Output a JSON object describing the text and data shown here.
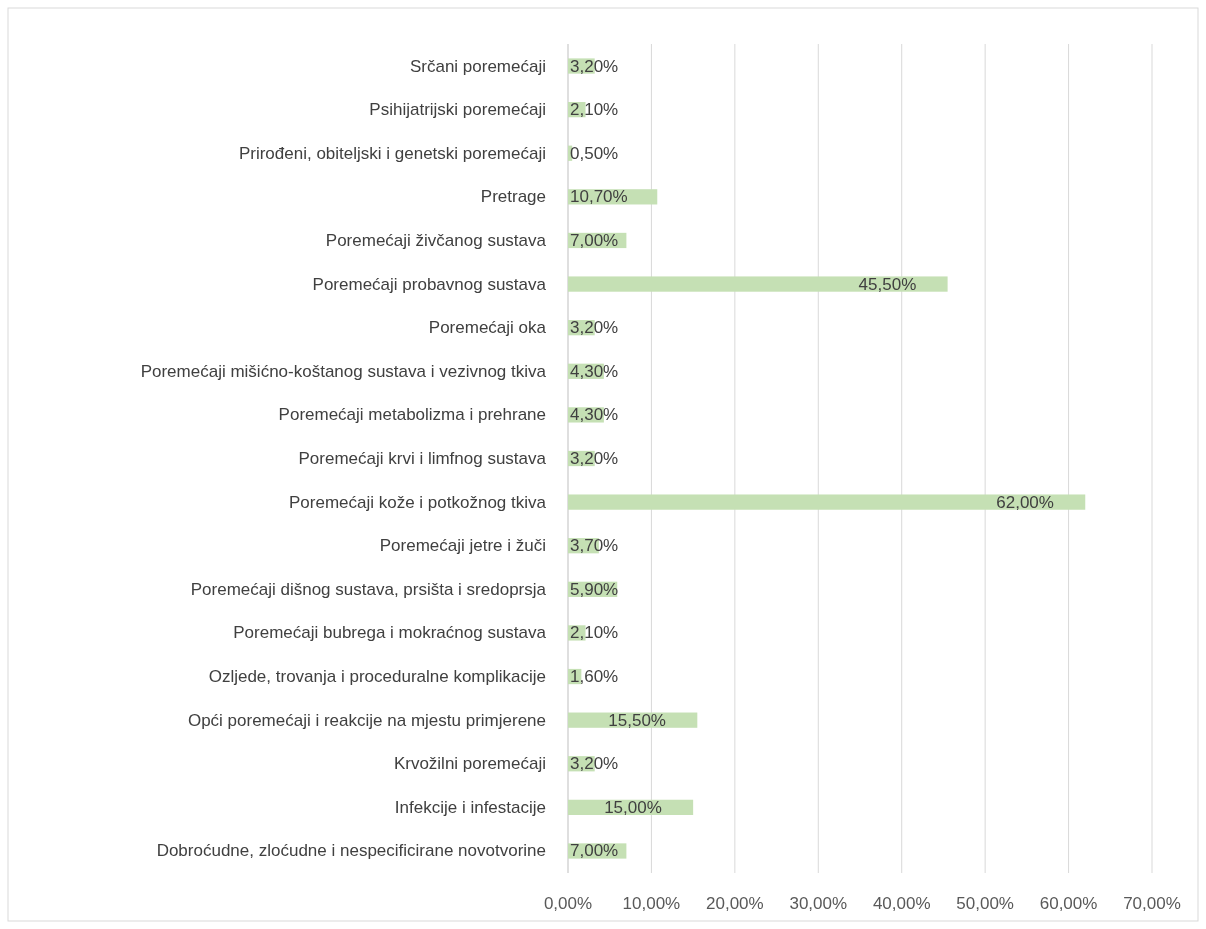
{
  "chart_data": {
    "type": "bar",
    "orientation": "horizontal",
    "categories": [
      "Srčani poremećaji",
      "Psihijatrijski poremećaji",
      "Prirođeni, obiteljski i genetski poremećaji",
      "Pretrage",
      "Poremećaji živčanog sustava",
      "Poremećaji probavnog sustava",
      "Poremećaji oka",
      "Poremećaji mišićno-koštanog sustava i vezivnog tkiva",
      "Poremećaji metabolizma i prehrane",
      "Poremećaji krvi i limfnog sustava",
      "Poremećaji kože i potkožnog tkiva",
      "Poremećaji jetre i žuči",
      "Poremećaji dišnog sustava, prsišta i sredoprsja",
      "Poremećaji bubrega i mokraćnog sustava",
      "Ozljede, trovanja i proceduralne komplikacije",
      "Opći poremećaji i reakcije na mjestu primjerene",
      "Krvožilni poremećaji",
      "Infekcije i infestacije",
      "Dobroćudne, zloćudne i nespecificirane novotvorine"
    ],
    "values": [
      3.2,
      2.1,
      0.5,
      10.7,
      7.0,
      45.5,
      3.2,
      4.3,
      4.3,
      3.2,
      62.0,
      3.7,
      5.9,
      2.1,
      1.6,
      15.5,
      3.2,
      15.0,
      7.0
    ],
    "value_labels": [
      "3,20%",
      "2,10%",
      "0,50%",
      "10,70%",
      "7,00%",
      "45,50%",
      "3,20%",
      "4,30%",
      "4,30%",
      "3,20%",
      "62,00%",
      "3,70%",
      "5,90%",
      "2,10%",
      "1,60%",
      "15,50%",
      "3,20%",
      "15,00%",
      "7,00%"
    ],
    "color": "#c5e0b4",
    "xlim": [
      0,
      70
    ],
    "xticks": [
      {
        "value": 0,
        "label": "0,00%"
      },
      {
        "value": 10,
        "label": "10,00%"
      },
      {
        "value": 20,
        "label": "20,00%"
      },
      {
        "value": 30,
        "label": "30,00%"
      },
      {
        "value": 40,
        "label": "40,00%"
      },
      {
        "value": 50,
        "label": "50,00%"
      },
      {
        "value": 60,
        "label": "60,00%"
      },
      {
        "value": 70,
        "label": "70,00%"
      }
    ],
    "grid": "x"
  }
}
